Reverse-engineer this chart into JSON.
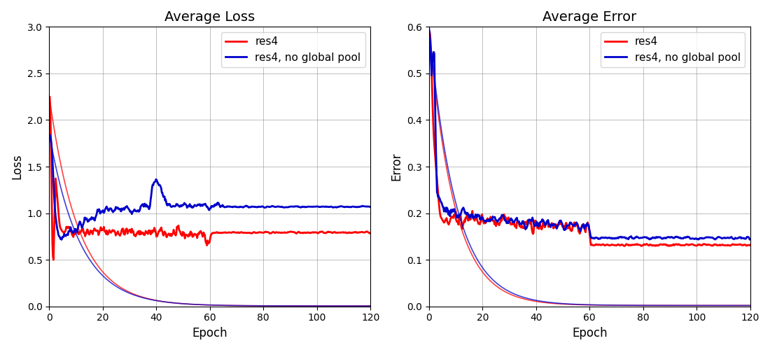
{
  "title_loss": "Average Loss",
  "title_error": "Average Error",
  "xlabel": "Epoch",
  "ylabel_loss": "Loss",
  "ylabel_error": "Error",
  "xlim": [
    0,
    120
  ],
  "ylim_loss": [
    0,
    3.0
  ],
  "ylim_error": [
    0,
    0.6
  ],
  "yticks_loss": [
    0.0,
    0.5,
    1.0,
    1.5,
    2.0,
    2.5,
    3.0
  ],
  "yticks_error": [
    0.0,
    0.1,
    0.2,
    0.3,
    0.4,
    0.5,
    0.6
  ],
  "xticks": [
    0,
    20,
    40,
    60,
    80,
    100,
    120
  ],
  "color_res4": "#ff0000",
  "color_nogpool": "#0000cc",
  "linewidth_thick": 2.0,
  "linewidth_thin": 1.2,
  "legend_labels": [
    "res4",
    "res4, no global pool"
  ],
  "figsize": [
    11.0,
    5.0
  ],
  "dpi": 100
}
